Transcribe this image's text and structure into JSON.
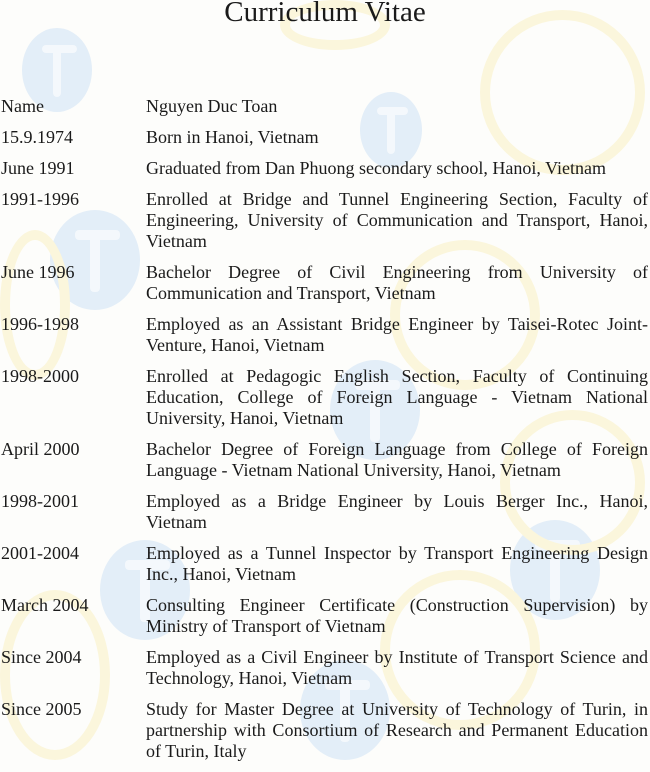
{
  "title": "Curriculum Vitae",
  "entries": [
    {
      "date": "Name",
      "text": "Nguyen Duc Toan"
    },
    {
      "date": "15.9.1974",
      "text": "Born in Hanoi, Vietnam"
    },
    {
      "date": "June 1991",
      "text": "Graduated from Dan Phuong secondary school, Hanoi, Vietnam"
    },
    {
      "date": "1991-1996",
      "text": "Enrolled at Bridge and Tunnel Engineering Section, Faculty of Engineering, University of Communication and Transport, Hanoi, Vietnam"
    },
    {
      "date": "June 1996",
      "text": "Bachelor Degree of Civil Engineering from University of Communication and Transport, Vietnam"
    },
    {
      "date": "1996-1998",
      "text": "Employed as an Assistant Bridge Engineer by Taisei-Rotec Joint-Venture, Hanoi, Vietnam"
    },
    {
      "date": "1998-2000",
      "text": "Enrolled at Pedagogic English Section, Faculty of Continuing Education, College of Foreign Language - Vietnam National University, Hanoi, Vietnam"
    },
    {
      "date": "April 2000",
      "text": "Bachelor Degree of Foreign Language from College of Foreign Language - Vietnam National University, Hanoi, Vietnam"
    },
    {
      "date": "1998-2001",
      "text": "Employed as a Bridge Engineer by Louis Berger Inc., Hanoi, Vietnam"
    },
    {
      "date": "2001-2004",
      "text": "Employed as a Tunnel Inspector by Transport Engineering Design Inc., Hanoi, Vietnam"
    },
    {
      "date": "March 2004",
      "text": "Consulting Engineer Certificate (Construction Supervision) by Ministry of Transport of Vietnam"
    },
    {
      "date": "Since 2004",
      "text": "Employed as a Civil Engineer by Institute of Transport Science and Technology, Hanoi, Vietnam"
    },
    {
      "date": "Since 2005",
      "text": "Study for Master Degree at University of Technology of Turin, in partnership with Consortium of Research and Permanent Education of Turin, Italy"
    }
  ],
  "watermark": {
    "letter": "T",
    "colors": {
      "blue": "#e3eef8",
      "yellow": "#fbf6dc"
    }
  }
}
